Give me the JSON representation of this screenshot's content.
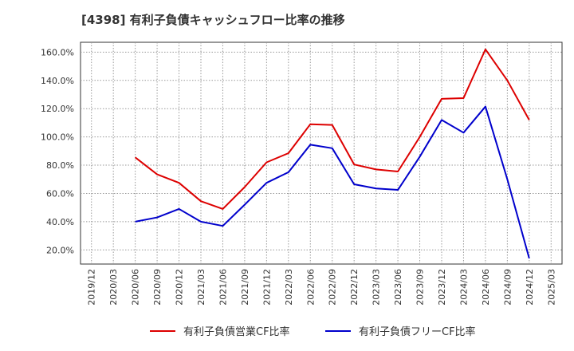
{
  "chart_data": {
    "type": "line",
    "title": "[4398]  有利子負債キャッシュフロー比率の推移",
    "xlabel": "",
    "ylabel": "",
    "x_categories": [
      "2019/12",
      "2020/03",
      "2020/06",
      "2020/09",
      "2020/12",
      "2021/03",
      "2021/06",
      "2021/09",
      "2021/12",
      "2022/03",
      "2022/06",
      "2022/09",
      "2022/12",
      "2023/03",
      "2023/06",
      "2023/09",
      "2023/12",
      "2024/03",
      "2024/06",
      "2024/09",
      "2024/12",
      "2025/03"
    ],
    "y_ticks": [
      "20.0%",
      "40.0%",
      "60.0%",
      "80.0%",
      "100.0%",
      "120.0%",
      "140.0%",
      "160.0%"
    ],
    "y_tick_values": [
      20,
      40,
      60,
      80,
      100,
      120,
      140,
      160
    ],
    "ylim": [
      10,
      167
    ],
    "grid": true,
    "legend_position": "bottom",
    "series": [
      {
        "name": "有利子負債営業CF比率",
        "color": "#dd0000",
        "start_index": 2,
        "values": [
          85.5,
          73.5,
          67.5,
          54.5,
          49.0,
          64.5,
          82.0,
          88.5,
          109.0,
          108.5,
          80.5,
          77.0,
          75.5,
          100.0,
          127.0,
          127.5,
          162.0,
          140.0,
          112.0
        ]
      },
      {
        "name": "有利子負債フリーCF比率",
        "color": "#0000cc",
        "start_index": 2,
        "values": [
          40.0,
          43.0,
          49.0,
          40.0,
          37.0,
          52.0,
          67.5,
          75.0,
          94.5,
          92.0,
          66.5,
          63.5,
          62.5,
          86.0,
          112.0,
          103.0,
          121.5,
          70.0,
          14.0
        ]
      }
    ]
  }
}
